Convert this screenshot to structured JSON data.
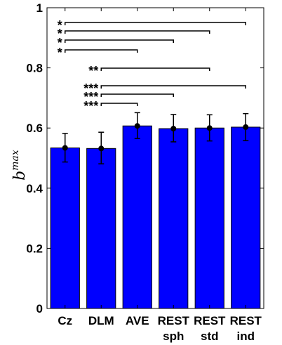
{
  "chart_data": {
    "type": "bar",
    "categories": [
      [
        "Cz"
      ],
      [
        "DLM"
      ],
      [
        "AVE"
      ],
      [
        "REST",
        "sph"
      ],
      [
        "REST",
        "std"
      ],
      [
        "REST",
        "ind"
      ]
    ],
    "values": [
      0.534,
      0.532,
      0.607,
      0.598,
      0.6,
      0.603
    ],
    "error_bars": [
      [
        0.487,
        0.582
      ],
      [
        0.481,
        0.586
      ],
      [
        0.565,
        0.651
      ],
      [
        0.554,
        0.645
      ],
      [
        0.557,
        0.644
      ],
      [
        0.558,
        0.648
      ]
    ],
    "ylabel": {
      "main": "b",
      "sup": "max"
    },
    "ylim": [
      0,
      1
    ],
    "yticks": [
      {
        "value": 0,
        "label": "0"
      },
      {
        "value": 0.2,
        "label": "0.2"
      },
      {
        "value": 0.4,
        "label": "0.4"
      },
      {
        "value": 0.6,
        "label": "0.6"
      },
      {
        "value": 0.8,
        "label": "0.8"
      },
      {
        "value": 1,
        "label": "1"
      }
    ],
    "grid": false,
    "bar_color": "#0000ff",
    "edge_color": "#000000",
    "significance": [
      {
        "from": 0,
        "to": 5,
        "label": "*"
      },
      {
        "from": 0,
        "to": 4,
        "label": "*"
      },
      {
        "from": 0,
        "to": 3,
        "label": "*"
      },
      {
        "from": 0,
        "to": 2,
        "label": "*"
      },
      {
        "from": 1,
        "to": 4,
        "label": "**"
      },
      {
        "from": 1,
        "to": 5,
        "label": "***"
      },
      {
        "from": 1,
        "to": 3,
        "label": "***"
      },
      {
        "from": 1,
        "to": 2,
        "label": "***"
      }
    ]
  }
}
